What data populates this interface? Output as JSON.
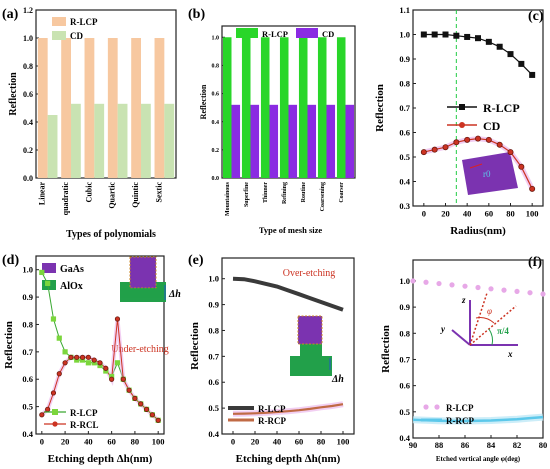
{
  "colors": {
    "rlcp_bar": "#f7c8a0",
    "cd_bar": "#c9e3b2",
    "rlcp_green": "#29d629",
    "cd_purple": "#8a2be2",
    "black": "#111111",
    "red": "#cc3322",
    "pink": "#e7a8e7",
    "cyan": "#5cc8ea",
    "gaas": "#7b33b0",
    "alox": "#22a04a",
    "dash_green": "#22cc44"
  },
  "panels": [
    {
      "label": "(a)"
    },
    {
      "label": "(b)"
    },
    {
      "label": "(c)"
    },
    {
      "label": "(d)"
    },
    {
      "label": "(e)"
    },
    {
      "label": "(f)"
    }
  ],
  "chart_data": [
    {
      "panel": "(a)",
      "type": "bar",
      "categories": [
        "Linear",
        "quadratic",
        "Cubic",
        "Quartic",
        "Quintic",
        "Sextic"
      ],
      "series": [
        {
          "name": "R-LCP",
          "values": [
            1.0,
            1.0,
            1.0,
            1.0,
            1.0,
            1.0
          ]
        },
        {
          "name": "CD",
          "values": [
            0.45,
            0.53,
            0.53,
            0.53,
            0.53,
            0.53
          ]
        }
      ],
      "xlabel": "Types of polynomials",
      "ylabel": "Reflection",
      "ylim": [
        0,
        1.2
      ],
      "yticks": [
        "0.0",
        "0.2",
        "0.4",
        "0.6",
        "0.8",
        "1.0",
        "1.2"
      ],
      "legend": "top"
    },
    {
      "panel": "(b)",
      "type": "bar",
      "categories": [
        "Mountainous",
        "Superfine",
        "Thinner",
        "Refining",
        "Routine",
        "Coarsening",
        "Coarser"
      ],
      "series": [
        {
          "name": "R-LCP",
          "values": [
            1.0,
            1.0,
            1.0,
            1.0,
            1.0,
            1.0,
            1.0
          ]
        },
        {
          "name": "CD",
          "values": [
            0.52,
            0.52,
            0.52,
            0.52,
            0.52,
            0.52,
            0.52
          ]
        }
      ],
      "xlabel": "Type of mesh size",
      "ylabel": "Reflection",
      "ylim": [
        0,
        1.08
      ],
      "yticks": [
        "0.0",
        "0.2",
        "0.4",
        "0.6",
        "0.8",
        "1.0"
      ],
      "legend": "top"
    },
    {
      "panel": "(c)",
      "type": "line",
      "x": [
        0,
        10,
        20,
        30,
        40,
        50,
        60,
        70,
        80,
        90,
        100
      ],
      "series": [
        {
          "name": "R-LCP",
          "values": [
            1.0,
            1.0,
            1.0,
            0.995,
            0.99,
            0.985,
            0.97,
            0.95,
            0.92,
            0.88,
            0.835
          ]
        },
        {
          "name": "CD",
          "values": [
            0.52,
            0.53,
            0.54,
            0.56,
            0.57,
            0.575,
            0.57,
            0.55,
            0.52,
            0.46,
            0.37
          ]
        }
      ],
      "xlabel": "Radius(nm)",
      "ylabel": "Reflection",
      "xlim": [
        -10,
        110
      ],
      "ylim": [
        0.3,
        1.1
      ],
      "xticks": [
        "0",
        "20",
        "40",
        "60",
        "80",
        "100"
      ],
      "yticks": [
        "0.3",
        "0.4",
        "0.5",
        "0.6",
        "0.7",
        "0.8",
        "0.9",
        "1.0",
        "1.1"
      ],
      "vline_x": 30,
      "inset_label": "r0",
      "legend": "center-right"
    },
    {
      "panel": "(d)",
      "type": "line",
      "x": [
        0,
        5,
        10,
        15,
        20,
        25,
        30,
        35,
        40,
        45,
        50,
        55,
        60,
        65,
        70,
        75,
        80,
        85,
        90,
        95,
        100
      ],
      "series": [
        {
          "name": "R-LCP",
          "values": [
            0.99,
            0.95,
            0.82,
            0.75,
            0.7,
            0.68,
            0.67,
            0.67,
            0.66,
            0.66,
            0.65,
            0.63,
            0.61,
            0.66,
            0.6,
            0.56,
            0.53,
            0.51,
            0.49,
            0.47,
            0.45
          ]
        },
        {
          "name": "R-RCL",
          "values": [
            0.47,
            0.49,
            0.55,
            0.62,
            0.66,
            0.68,
            0.68,
            0.68,
            0.68,
            0.67,
            0.66,
            0.64,
            0.6,
            0.82,
            0.6,
            0.56,
            0.53,
            0.51,
            0.49,
            0.47,
            0.45
          ]
        }
      ],
      "xlabel": "Etching depth Δh(nm)",
      "ylabel": "Reflection",
      "xlim": [
        -5,
        105
      ],
      "ylim": [
        0.4,
        1.05
      ],
      "xticks": [
        "0",
        "20",
        "40",
        "60",
        "80",
        "100"
      ],
      "yticks": [
        "0.4",
        "0.5",
        "0.6",
        "0.7",
        "0.8",
        "0.9",
        "1.0"
      ],
      "legend_top": [
        "GaAs",
        "AlOx"
      ],
      "annotation": "Under-etching",
      "inset_label": "Δh",
      "legend": "bottom-left"
    },
    {
      "panel": "(e)",
      "type": "line",
      "x": [
        0,
        10,
        20,
        30,
        40,
        50,
        60,
        70,
        80,
        90,
        100
      ],
      "series": [
        {
          "name": "R-LCP",
          "values": [
            1.0,
            0.998,
            0.99,
            0.98,
            0.97,
            0.955,
            0.94,
            0.925,
            0.91,
            0.895,
            0.88
          ]
        },
        {
          "name": "R-RCP",
          "values": [
            0.478,
            0.479,
            0.48,
            0.482,
            0.485,
            0.488,
            0.492,
            0.497,
            0.503,
            0.508,
            0.515
          ]
        }
      ],
      "xlabel": "Etching depth Δh(nm)",
      "ylabel": "Reflection",
      "xlim": [
        -10,
        110
      ],
      "ylim": [
        0.4,
        1.08
      ],
      "xticks": [
        "0",
        "20",
        "40",
        "60",
        "80",
        "100"
      ],
      "yticks": [
        "0.4",
        "0.5",
        "0.6",
        "0.7",
        "0.8",
        "0.9",
        "1.0"
      ],
      "annotation": "Over-etching",
      "inset_label": "Δh",
      "legend": "bottom-left"
    },
    {
      "panel": "(f)",
      "type": "line",
      "x": [
        90,
        89,
        88,
        87,
        86,
        85,
        84,
        83,
        82,
        81,
        80
      ],
      "series": [
        {
          "name": "R-LCP",
          "values": [
            1.0,
            0.995,
            0.99,
            0.985,
            0.98,
            0.975,
            0.97,
            0.965,
            0.96,
            0.955,
            0.95
          ]
        },
        {
          "name": "R-RCP",
          "values": [
            0.47,
            0.468,
            0.466,
            0.465,
            0.465,
            0.466,
            0.467,
            0.469,
            0.472,
            0.476,
            0.48
          ]
        }
      ],
      "xlabel": "Etched vertical angle φ(deg)",
      "ylabel": "Reflection",
      "xlim": [
        90,
        80
      ],
      "ylim": [
        0.4,
        1.08
      ],
      "xticks": [
        "90",
        "88",
        "86",
        "84",
        "82",
        "80"
      ],
      "yticks": [
        "0.4",
        "0.5",
        "0.6",
        "0.7",
        "0.8",
        "0.9",
        "1.0"
      ],
      "inset_labels": [
        "z",
        "y",
        "x",
        "φ",
        "π/4"
      ],
      "legend": "bottom-left"
    }
  ]
}
